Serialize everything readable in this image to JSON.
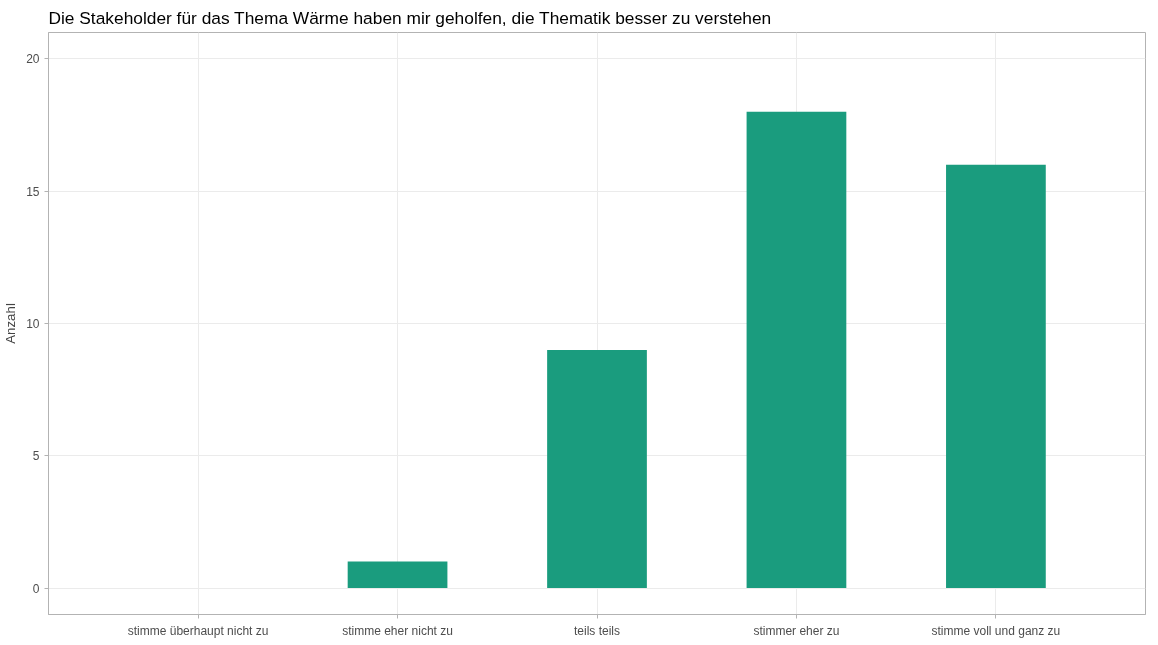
{
  "chart_data": {
    "type": "bar",
    "title": "Die Stakeholder für das Thema Wärme haben mir geholfen, die Thematik besser zu verstehen",
    "ylabel": "Anzahl",
    "categories": [
      "stimme überhaupt nicht zu",
      "stimme eher nicht zu",
      "teils teils",
      "stimmer eher zu",
      "stimme voll und ganz zu"
    ],
    "values": [
      0,
      1,
      9,
      18,
      16
    ],
    "color": "#1a9c7e",
    "ylim": [
      -1,
      21
    ],
    "yticks": [
      0,
      5,
      10,
      15,
      20
    ],
    "grid": true
  }
}
